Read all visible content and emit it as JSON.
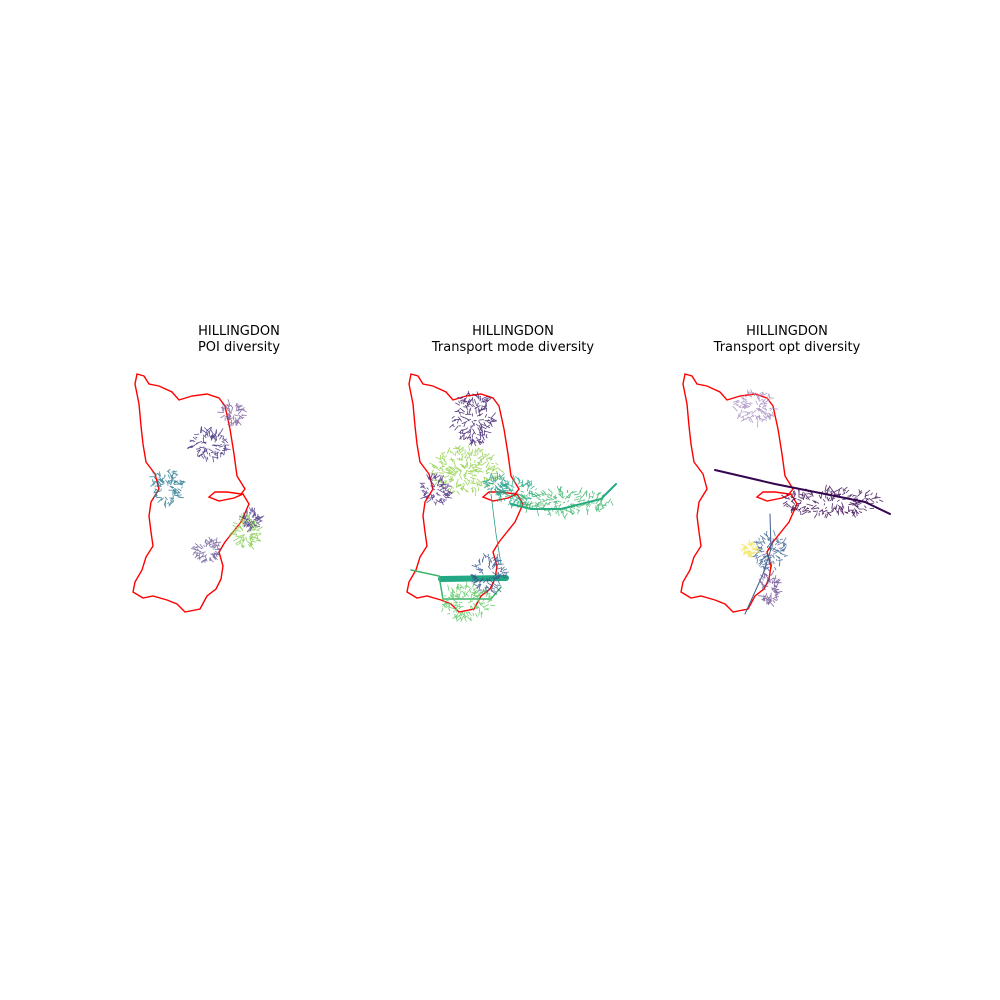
{
  "figure": {
    "panels": [
      {
        "id": "poi",
        "area": "HILLINGDON",
        "subtitle": "POI diversity",
        "clusters": [
          {
            "color": "#7b5a9a",
            "level": 0.2
          },
          {
            "color": "#3e2a7e",
            "level": 0.05
          },
          {
            "color": "#26788f",
            "level": 0.4
          },
          {
            "color": "#6e5a98",
            "level": 0.2
          },
          {
            "color": "#7fc94a",
            "level": 0.85
          },
          {
            "color": "#4a3a86",
            "level": 0.1
          }
        ]
      },
      {
        "id": "mode",
        "area": "HILLINGDON",
        "subtitle": "Transport mode diversity",
        "clusters": [
          {
            "color": "#3b1c6b",
            "level": 0.0
          },
          {
            "color": "#8ccf45",
            "level": 0.85
          },
          {
            "color": "#4b2a80",
            "level": 0.05
          },
          {
            "color": "#22a884",
            "level": 0.6
          },
          {
            "color": "#2a9d8f",
            "level": 0.55
          },
          {
            "color": "#3bb36a",
            "level": 0.7
          },
          {
            "color": "#35568c",
            "level": 0.3
          },
          {
            "color": "#5cc863",
            "level": 0.75
          }
        ]
      },
      {
        "id": "opt",
        "area": "HILLINGDON",
        "subtitle": "Transport opt diversity",
        "clusters": [
          {
            "color": "#a58cc0",
            "level": 0.15
          },
          {
            "color": "#35064f",
            "level": 0.0
          },
          {
            "color": "#3b5f8f",
            "level": 0.35
          },
          {
            "color": "#6a4d92",
            "level": 0.2
          },
          {
            "color": "#f2e55c",
            "level": 1.0
          }
        ]
      }
    ],
    "boundary_color": "#ff0000"
  }
}
